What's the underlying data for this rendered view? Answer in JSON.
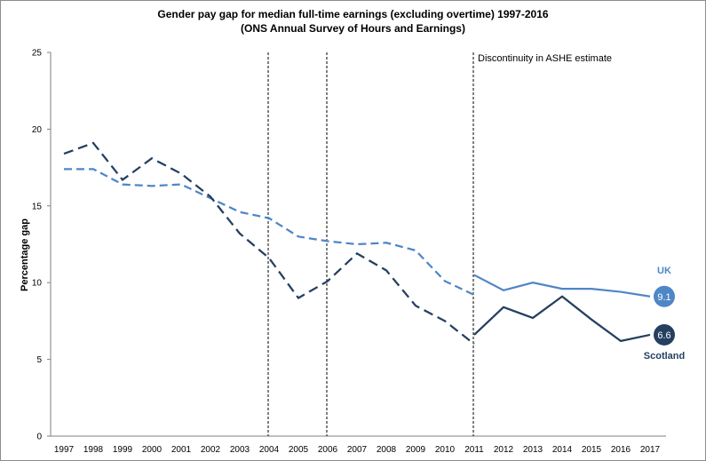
{
  "chart_data": {
    "type": "line",
    "title": "Gender pay gap for median full-time earnings (excluding overtime) 1997-2016",
    "subtitle": "(ONS Annual Survey of Hours and Earnings)",
    "xlabel": "",
    "ylabel": "Percentage gap",
    "ylim": [
      0,
      25
    ],
    "yticks": [
      "0",
      "5",
      "10",
      "15",
      "20",
      "25"
    ],
    "categories": [
      "1997",
      "1998",
      "1999",
      "2000",
      "2001",
      "2002",
      "2003",
      "2004",
      "2005",
      "2006",
      "2007",
      "2008",
      "2009",
      "2010",
      "2011",
      "2012",
      "2013",
      "2014",
      "2015",
      "2016",
      "2017"
    ],
    "grid": false,
    "series": [
      {
        "name": "UK",
        "color": "#4f86c6",
        "values": [
          17.4,
          17.4,
          16.4,
          16.3,
          16.4,
          15.5,
          14.6,
          14.2,
          13.0,
          12.7,
          12.5,
          12.6,
          12.1,
          10.1,
          9.2,
          null,
          null,
          null,
          null,
          null,
          null
        ],
        "values_after_discontinuity": [
          null,
          null,
          null,
          null,
          null,
          null,
          null,
          null,
          null,
          null,
          null,
          null,
          null,
          null,
          10.5,
          9.5,
          10.0,
          9.6,
          9.6,
          9.4,
          9.1
        ],
        "end_label": "9.1"
      },
      {
        "name": "Scotland",
        "color": "#243f60",
        "values": [
          18.4,
          19.1,
          16.7,
          18.1,
          17.1,
          15.6,
          13.2,
          11.6,
          9.0,
          10.1,
          11.9,
          10.8,
          8.5,
          7.5,
          6.0,
          null,
          null,
          null,
          null,
          null,
          null
        ],
        "values_after_discontinuity": [
          null,
          null,
          null,
          null,
          null,
          null,
          null,
          null,
          null,
          null,
          null,
          null,
          null,
          null,
          6.6,
          8.4,
          7.7,
          9.1,
          7.6,
          6.2,
          6.6
        ],
        "end_label": "6.6"
      }
    ],
    "vertical_markers": [
      "2004",
      "2006",
      "2011"
    ],
    "annotations": [
      {
        "text": "Discontinuity in ASHE estimate",
        "at": "2011"
      }
    ]
  }
}
